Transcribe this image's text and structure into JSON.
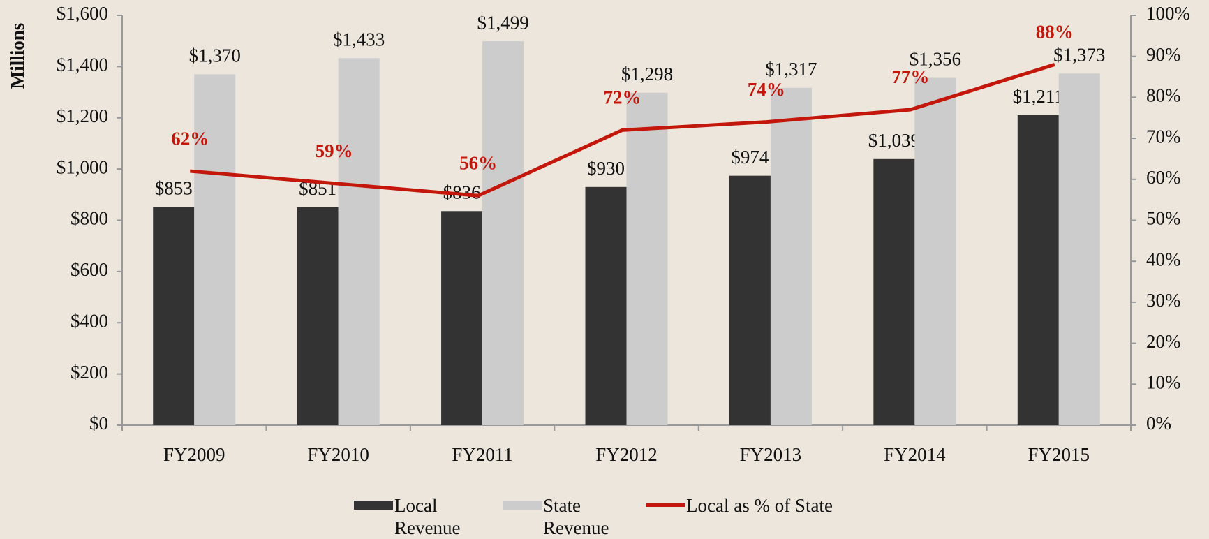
{
  "chart_data": {
    "type": "bar",
    "y_axis_label": "Millions",
    "categories": [
      "FY2009",
      "FY2010",
      "FY2011",
      "FY2012",
      "FY2013",
      "FY2014",
      "FY2015"
    ],
    "series": [
      {
        "name": "Local Revenue",
        "color": "#333333",
        "values": [
          853,
          851,
          836,
          930,
          974,
          1039,
          1211
        ],
        "value_labels": [
          "$853",
          "$851",
          "$836",
          "$930",
          "$974",
          "$1,039",
          "$1,211"
        ]
      },
      {
        "name": "State Revenue",
        "color": "#cccccc",
        "values": [
          1370,
          1433,
          1499,
          1298,
          1317,
          1356,
          1373
        ],
        "value_labels": [
          "$1,370",
          "$1,433",
          "$1,499",
          "$1,298",
          "$1,317",
          "$1,356",
          "$1,373"
        ]
      },
      {
        "name": "Local as % of State",
        "color": "#c4170c",
        "type": "line",
        "axis": "y2",
        "values": [
          62,
          59,
          56,
          72,
          74,
          77,
          88
        ],
        "value_labels": [
          "62%",
          "59%",
          "56%",
          "72%",
          "74%",
          "77%",
          "88%"
        ]
      }
    ],
    "ylim": [
      0,
      1600
    ],
    "yticks": [
      {
        "value": 0,
        "label": "$0"
      },
      {
        "value": 200,
        "label": "$200"
      },
      {
        "value": 400,
        "label": "$400"
      },
      {
        "value": 600,
        "label": "$600"
      },
      {
        "value": 800,
        "label": "$800"
      },
      {
        "value": 1000,
        "label": "$1,000"
      },
      {
        "value": 1200,
        "label": "$1,200"
      },
      {
        "value": 1400,
        "label": "$1,400"
      },
      {
        "value": 1600,
        "label": "$1,600"
      }
    ],
    "y2lim": [
      0,
      100
    ],
    "y2ticks": [
      {
        "value": 0,
        "label": "0%"
      },
      {
        "value": 10,
        "label": "10%"
      },
      {
        "value": 20,
        "label": "20%"
      },
      {
        "value": 30,
        "label": "30%"
      },
      {
        "value": 40,
        "label": "40%"
      },
      {
        "value": 50,
        "label": "50%"
      },
      {
        "value": 60,
        "label": "60%"
      },
      {
        "value": 70,
        "label": "70%"
      },
      {
        "value": 80,
        "label": "80%"
      },
      {
        "value": 90,
        "label": "90%"
      },
      {
        "value": 100,
        "label": "100%"
      }
    ],
    "grid": false
  }
}
